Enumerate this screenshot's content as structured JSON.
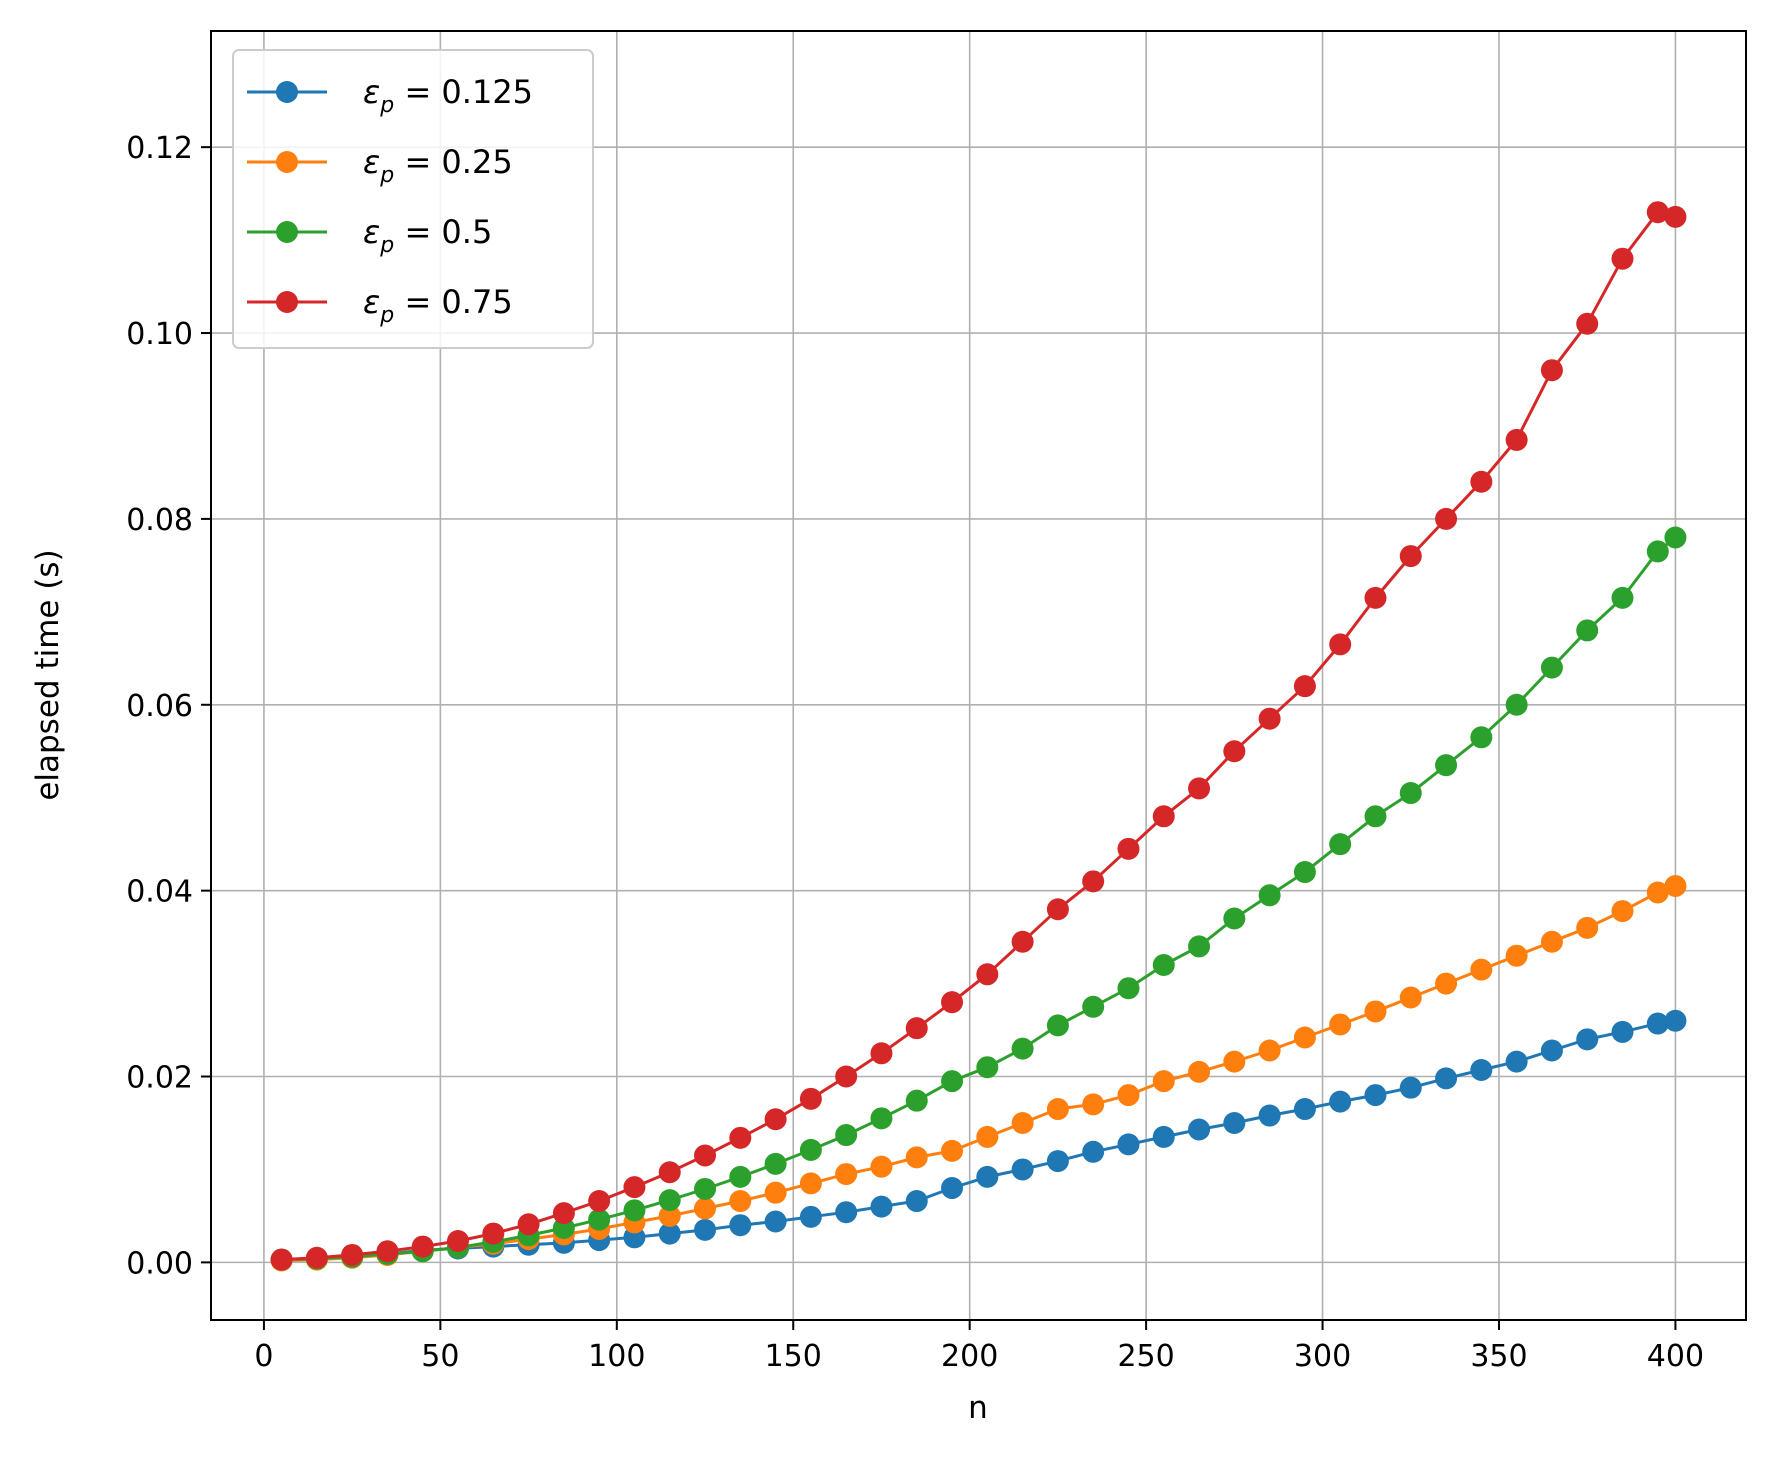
{
  "chart_data": {
    "type": "line",
    "title": "",
    "xlabel": "n",
    "ylabel": "elapsed time (s)",
    "xlim": [
      -15,
      420
    ],
    "ylim": [
      -0.0062,
      0.1325
    ],
    "x_ticks": [
      0,
      50,
      100,
      150,
      200,
      250,
      300,
      350,
      400
    ],
    "x_tick_labels": [
      "0",
      "50",
      "100",
      "150",
      "200",
      "250",
      "300",
      "350",
      "400"
    ],
    "y_ticks": [
      0.0,
      0.02,
      0.04,
      0.06,
      0.08,
      0.1,
      0.12
    ],
    "y_tick_labels": [
      "0.00",
      "0.02",
      "0.04",
      "0.06",
      "0.08",
      "0.10",
      "0.12"
    ],
    "grid": true,
    "legend_position": "top-left",
    "markers": "circle",
    "x": [
      5,
      15,
      25,
      35,
      45,
      55,
      65,
      75,
      85,
      95,
      105,
      115,
      125,
      135,
      145,
      155,
      165,
      175,
      185,
      195,
      205,
      215,
      225,
      235,
      245,
      255,
      265,
      275,
      285,
      295,
      305,
      315,
      325,
      335,
      345,
      355,
      365,
      375,
      385,
      395,
      400
    ],
    "series": [
      {
        "name": "ε_p = 0.125",
        "label_prefix": "ε",
        "label_sub": "p",
        "label_value": " = 0.125",
        "color": "#1f77b4",
        "values": [
          0.0003,
          0.0004,
          0.0006,
          0.0009,
          0.0013,
          0.0015,
          0.0017,
          0.0019,
          0.0021,
          0.0024,
          0.0027,
          0.0031,
          0.0035,
          0.004,
          0.0044,
          0.0049,
          0.0054,
          0.006,
          0.0066,
          0.008,
          0.0092,
          0.01,
          0.0109,
          0.0119,
          0.0127,
          0.0135,
          0.0143,
          0.015,
          0.0158,
          0.0165,
          0.0173,
          0.018,
          0.0188,
          0.0198,
          0.0207,
          0.0216,
          0.0228,
          0.024,
          0.0248,
          0.0257,
          0.026
        ]
      },
      {
        "name": "ε_p = 0.25",
        "label_prefix": "ε",
        "label_sub": "p",
        "label_value": " = 0.25",
        "color": "#ff7f0e",
        "values": [
          0.0002,
          0.0003,
          0.0005,
          0.0008,
          0.0012,
          0.0016,
          0.002,
          0.0025,
          0.003,
          0.0036,
          0.0043,
          0.005,
          0.0058,
          0.0066,
          0.0075,
          0.0085,
          0.0095,
          0.0103,
          0.0113,
          0.012,
          0.0135,
          0.015,
          0.0165,
          0.017,
          0.018,
          0.0195,
          0.0205,
          0.0216,
          0.0228,
          0.0242,
          0.0256,
          0.027,
          0.0285,
          0.03,
          0.0315,
          0.033,
          0.0345,
          0.036,
          0.0378,
          0.0398,
          0.0405
        ]
      },
      {
        "name": "ε_p = 0.5",
        "label_prefix": "ε",
        "label_sub": "p",
        "label_value": " = 0.5",
        "color": "#2ca02c",
        "values": [
          0.0003,
          0.0004,
          0.0006,
          0.0009,
          0.0012,
          0.0016,
          0.0022,
          0.0029,
          0.0037,
          0.0046,
          0.0056,
          0.0067,
          0.0079,
          0.0092,
          0.0106,
          0.0121,
          0.0137,
          0.0155,
          0.0174,
          0.0195,
          0.021,
          0.023,
          0.0255,
          0.0275,
          0.0295,
          0.032,
          0.034,
          0.037,
          0.0395,
          0.042,
          0.045,
          0.048,
          0.0505,
          0.0535,
          0.0565,
          0.06,
          0.064,
          0.068,
          0.0715,
          0.0765,
          0.078
        ]
      },
      {
        "name": "ε_p = 0.75",
        "label_prefix": "ε",
        "label_sub": "p",
        "label_value": " = 0.75",
        "color": "#d62728",
        "values": [
          0.0003,
          0.0005,
          0.0008,
          0.0012,
          0.0017,
          0.0023,
          0.0031,
          0.0041,
          0.0053,
          0.0066,
          0.0081,
          0.0097,
          0.0115,
          0.0134,
          0.0154,
          0.0176,
          0.02,
          0.0225,
          0.0252,
          0.028,
          0.031,
          0.0345,
          0.038,
          0.041,
          0.0445,
          0.048,
          0.051,
          0.055,
          0.0585,
          0.062,
          0.0665,
          0.0715,
          0.076,
          0.08,
          0.084,
          0.0885,
          0.096,
          0.101,
          0.108,
          0.113,
          0.1125
        ]
      }
    ]
  }
}
